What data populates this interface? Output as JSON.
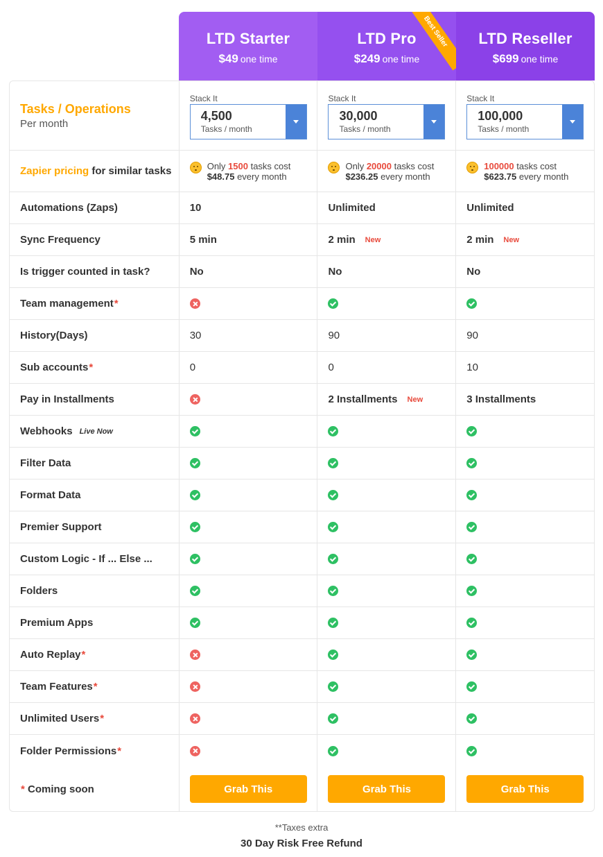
{
  "plans": [
    {
      "name": "LTD Starter",
      "price": "$49",
      "once": "one time"
    },
    {
      "name": "LTD Pro",
      "price": "$249",
      "once": "one time",
      "ribbon": "Best Seller"
    },
    {
      "name": "LTD Reseller",
      "price": "$699",
      "once": "one time"
    }
  ],
  "tasks": {
    "title": "Tasks / Operations",
    "subtitle": "Per month",
    "stack_label": "Stack It",
    "unit": "Tasks / month",
    "values": [
      "4,500",
      "30,000",
      "100,000"
    ]
  },
  "zapier": {
    "label_orange": "Zapier pricing",
    "label_rest": " for similar tasks",
    "cols": [
      {
        "prefix": "Only ",
        "count": "1500",
        "mid": " tasks cost",
        "cost": "$48.75",
        "suffix": " every month"
      },
      {
        "prefix": "Only ",
        "count": "20000",
        "mid": " tasks cost",
        "cost": "$236.25",
        "suffix": " every month"
      },
      {
        "prefix": "",
        "count": "100000",
        "mid": " tasks cost",
        "cost": "$623.75",
        "suffix": " every month"
      }
    ]
  },
  "rows": [
    {
      "label": "Automations (Zaps)",
      "star": "",
      "tag": "",
      "vals": [
        {
          "text": "10",
          "bold": true
        },
        {
          "text": "Unlimited",
          "bold": true
        },
        {
          "text": "Unlimited",
          "bold": true
        }
      ]
    },
    {
      "label": "Sync Frequency",
      "star": "",
      "tag": "",
      "vals": [
        {
          "text": "5 min",
          "bold": true
        },
        {
          "text": "2 min",
          "bold": true,
          "tag": "New"
        },
        {
          "text": "2 min",
          "bold": true,
          "tag": "New"
        }
      ]
    },
    {
      "label": "Is trigger counted in task?",
      "star": "",
      "tag": "",
      "vals": [
        {
          "text": "No",
          "bold": true
        },
        {
          "text": "No",
          "bold": true
        },
        {
          "text": "No",
          "bold": true
        }
      ]
    },
    {
      "label": "Team management",
      "star": "*",
      "tag": "",
      "vals": [
        {
          "icon": "cross"
        },
        {
          "icon": "check"
        },
        {
          "icon": "check"
        }
      ]
    },
    {
      "label": "History(Days)",
      "star": "",
      "tag": "",
      "vals": [
        {
          "text": "30"
        },
        {
          "text": "90"
        },
        {
          "text": "90"
        }
      ]
    },
    {
      "label": "Sub accounts",
      "star": "*",
      "tag": "",
      "vals": [
        {
          "text": "0"
        },
        {
          "text": "0"
        },
        {
          "text": "10"
        }
      ]
    },
    {
      "label": "Pay in Installments",
      "star": "",
      "tag": "",
      "vals": [
        {
          "icon": "cross"
        },
        {
          "text": "2 Installments",
          "bold": true,
          "tag": "New"
        },
        {
          "text": "3 Installments",
          "bold": true
        }
      ]
    },
    {
      "label": "Webhooks",
      "star": "",
      "tag": "Live Now",
      "vals": [
        {
          "icon": "check"
        },
        {
          "icon": "check"
        },
        {
          "icon": "check"
        }
      ]
    },
    {
      "label": "Filter Data",
      "star": "",
      "tag": "",
      "vals": [
        {
          "icon": "check"
        },
        {
          "icon": "check"
        },
        {
          "icon": "check"
        }
      ]
    },
    {
      "label": "Format Data",
      "star": "",
      "tag": "",
      "vals": [
        {
          "icon": "check"
        },
        {
          "icon": "check"
        },
        {
          "icon": "check"
        }
      ]
    },
    {
      "label": "Premier Support",
      "star": "",
      "tag": "",
      "vals": [
        {
          "icon": "check"
        },
        {
          "icon": "check"
        },
        {
          "icon": "check"
        }
      ]
    },
    {
      "label": "Custom Logic - If ... Else ...",
      "star": "",
      "tag": "",
      "vals": [
        {
          "icon": "check"
        },
        {
          "icon": "check"
        },
        {
          "icon": "check"
        }
      ]
    },
    {
      "label": "Folders",
      "star": "",
      "tag": "",
      "vals": [
        {
          "icon": "check"
        },
        {
          "icon": "check"
        },
        {
          "icon": "check"
        }
      ]
    },
    {
      "label": "Premium Apps",
      "star": "",
      "tag": "",
      "vals": [
        {
          "icon": "check"
        },
        {
          "icon": "check"
        },
        {
          "icon": "check"
        }
      ]
    },
    {
      "label": "Auto Replay",
      "star": "*",
      "tag": "",
      "vals": [
        {
          "icon": "cross"
        },
        {
          "icon": "check"
        },
        {
          "icon": "check"
        }
      ]
    },
    {
      "label": "Team Features",
      "star": "*",
      "tag": "",
      "vals": [
        {
          "icon": "cross"
        },
        {
          "icon": "check"
        },
        {
          "icon": "check"
        }
      ]
    },
    {
      "label": "Unlimited Users",
      "star": "*",
      "tag": "",
      "vals": [
        {
          "icon": "cross"
        },
        {
          "icon": "check"
        },
        {
          "icon": "check"
        }
      ]
    },
    {
      "label": "Folder Permissions",
      "star": "*",
      "tag": "",
      "vals": [
        {
          "icon": "cross"
        },
        {
          "icon": "check"
        },
        {
          "icon": "check"
        }
      ]
    }
  ],
  "footer": {
    "star": "*",
    "coming": " Coming soon",
    "button_label": "Grab This",
    "taxes": "**Taxes extra",
    "refund": "30 Day Risk Free Refund"
  },
  "colors": {
    "orange": "#ffa800",
    "check": "#2ec063",
    "cross": "#ee6360",
    "purple": "#9550ef",
    "blue": "#4b83d8",
    "red": "#e84a3c"
  }
}
